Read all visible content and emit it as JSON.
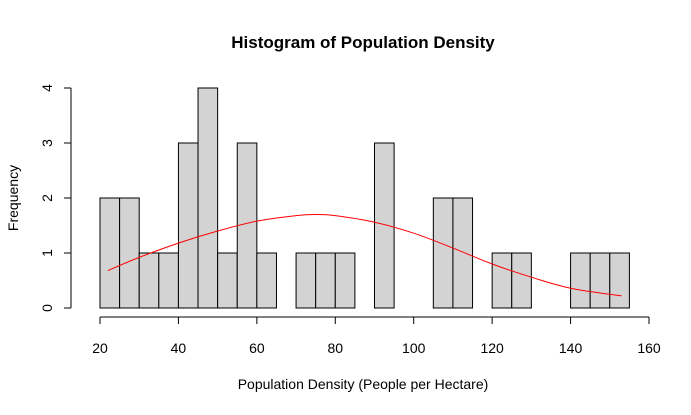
{
  "chart_data": {
    "type": "bar",
    "title": "Histogram of Population Density",
    "xlabel": "Population Density (People per Hectare)",
    "ylabel": "Frequency",
    "bin_width": 5,
    "bins_start": [
      20,
      25,
      30,
      35,
      40,
      45,
      50,
      55,
      60,
      65,
      70,
      75,
      80,
      85,
      90,
      95,
      100,
      105,
      110,
      115,
      120,
      125,
      130,
      135,
      140,
      145,
      150
    ],
    "values": [
      2,
      2,
      1,
      1,
      3,
      4,
      1,
      3,
      1,
      0,
      1,
      1,
      1,
      0,
      3,
      0,
      0,
      2,
      2,
      0,
      1,
      1,
      0,
      0,
      1,
      1,
      1
    ],
    "xlim": [
      20,
      160
    ],
    "ylim": [
      0,
      4
    ],
    "x_ticks": [
      20,
      40,
      60,
      80,
      100,
      120,
      140,
      160
    ],
    "y_ticks": [
      0,
      1,
      2,
      3,
      4
    ],
    "grid": false,
    "overlay": {
      "type": "line",
      "color": "#ff0000",
      "x": [
        22,
        30,
        40,
        50,
        60,
        70,
        75,
        80,
        90,
        100,
        110,
        120,
        130,
        140,
        153
      ],
      "y": [
        0.68,
        0.92,
        1.18,
        1.4,
        1.58,
        1.68,
        1.7,
        1.68,
        1.56,
        1.36,
        1.09,
        0.8,
        0.56,
        0.36,
        0.22
      ]
    }
  }
}
